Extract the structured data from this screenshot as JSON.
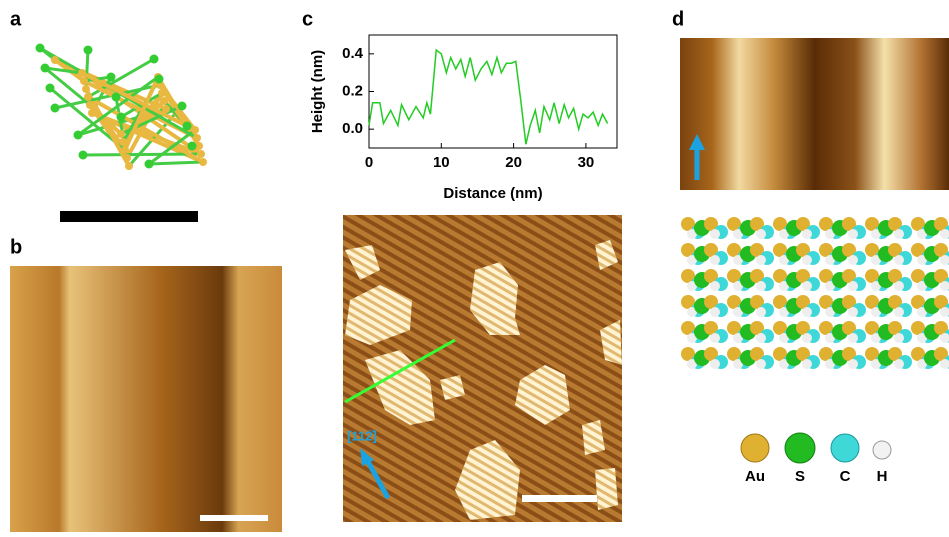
{
  "labels": [
    "a",
    "b",
    "c",
    "d"
  ],
  "chart_data": {
    "type": "line",
    "x_label": "Distance (nm)",
    "y_label": "Height (nm)",
    "x": [
      0,
      0.5,
      1.5,
      2,
      3,
      4,
      4.5,
      5.5,
      6.5,
      7.5,
      8,
      8.5,
      9.3,
      10,
      10.7,
      11.3,
      12,
      12.7,
      13.3,
      14,
      14.7,
      15.5,
      16.3,
      17,
      17.7,
      18.3,
      19,
      19.7,
      20.3,
      21,
      21.7,
      22.3,
      23,
      23.6,
      24.2,
      25,
      25.6,
      26.3,
      27,
      27.6,
      28.3,
      29,
      29.6,
      30.3,
      31,
      31.7,
      32.3,
      33
    ],
    "series": [
      {
        "color": "#22cc22",
        "values": [
          0.02,
          0.14,
          0.14,
          0.03,
          0.1,
          0.02,
          0.13,
          0.05,
          0.12,
          0.06,
          0.14,
          0.08,
          0.42,
          0.4,
          0.3,
          0.38,
          0.32,
          0.37,
          0.28,
          0.38,
          0.26,
          0.32,
          0.36,
          0.29,
          0.38,
          0.3,
          0.35,
          0.35,
          0.36,
          0.15,
          -0.08,
          0.02,
          0.1,
          -0.02,
          0.12,
          0.05,
          0.14,
          0.03,
          0.13,
          0.06,
          0.11,
          0.0,
          0.08,
          0.06,
          0.09,
          0.02,
          0.08,
          0.03
        ]
      }
    ],
    "xlim": [
      0,
      34.3
    ],
    "ylim": [
      -0.1,
      0.5
    ],
    "xticks": [
      0,
      10,
      20,
      30
    ],
    "yticks": [
      {
        "value": 0,
        "label": "0.0"
      },
      0.2,
      0.4
    ]
  },
  "direction_label": "[112̅]",
  "legend": [
    "Au",
    "S",
    "C",
    "H"
  ]
}
